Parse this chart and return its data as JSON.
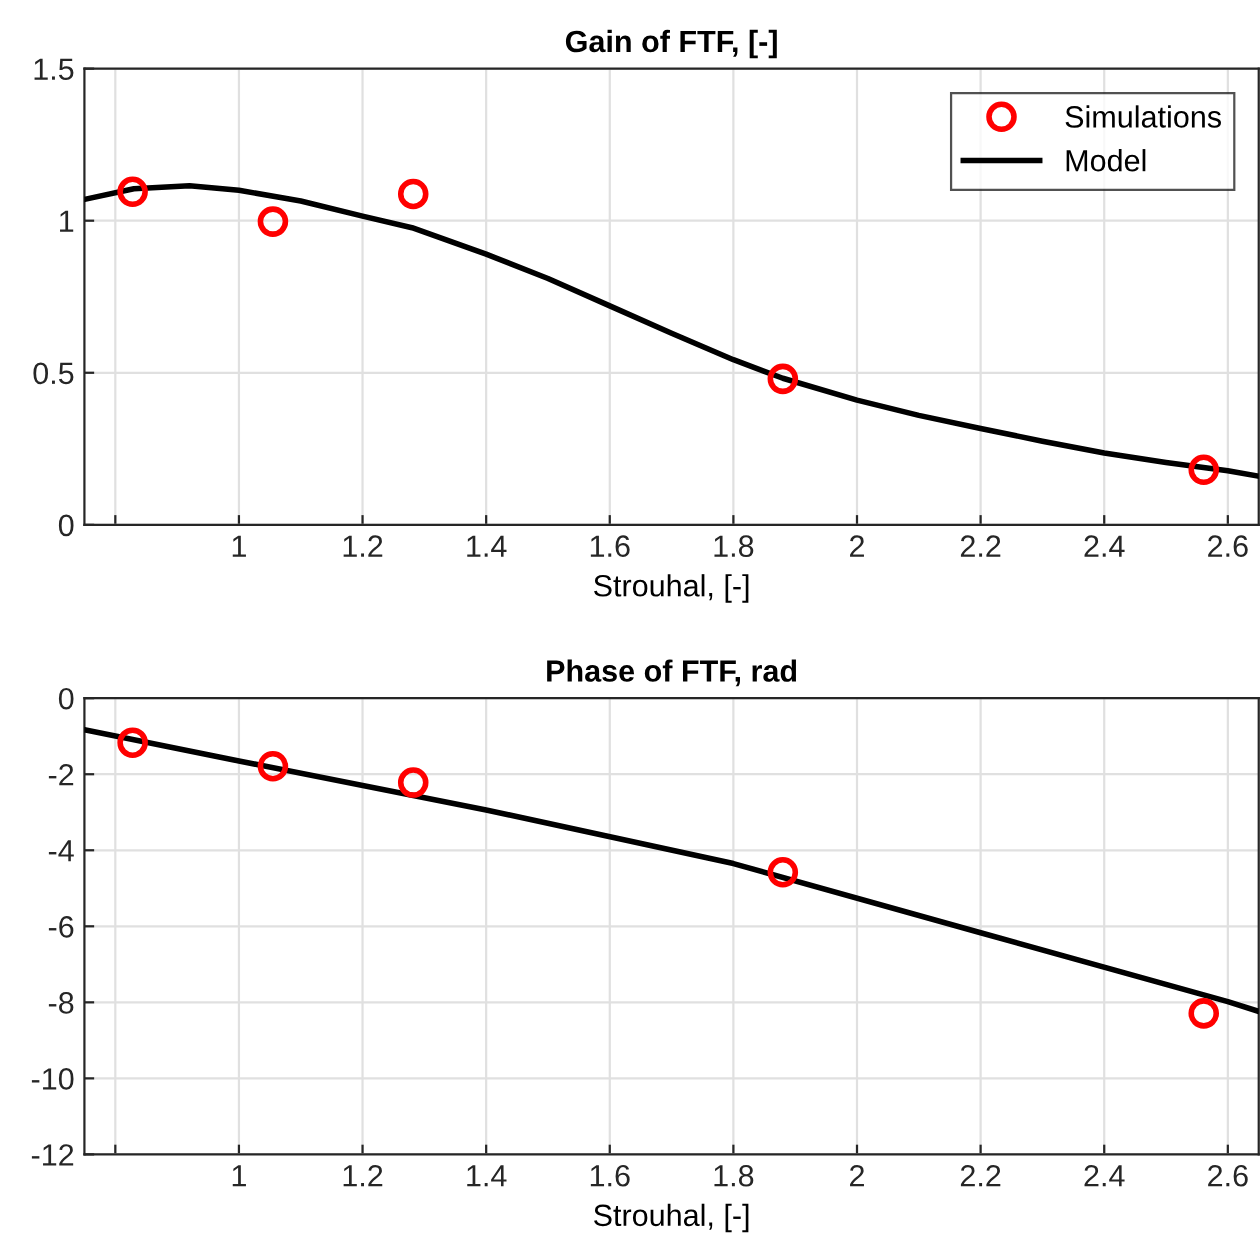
{
  "chart_data": [
    {
      "type": "line",
      "title": "Gain of FTF, [-]",
      "xlabel": "Strouhal, [-]",
      "xlim": [
        0.75,
        2.65
      ],
      "xticks": [
        {
          "value": 0.8,
          "label": null
        },
        1,
        1.2,
        1.4,
        1.6,
        1.8,
        2,
        2.2,
        2.4,
        2.6
      ],
      "ylim": [
        0,
        1.5
      ],
      "yticks": [
        0,
        0.5,
        1,
        1.5
      ],
      "grid": true,
      "legend": "top right",
      "series": [
        {
          "name": "Simulations",
          "type": "scatter",
          "marker": "circle",
          "color": "#ff0000",
          "x": [
            0.828,
            1.055,
            1.282,
            1.88,
            2.561
          ],
          "values": [
            1.095,
            0.997,
            1.088,
            0.48,
            0.181
          ]
        },
        {
          "name": "Model",
          "marker": "none",
          "line_style": "solid",
          "color": "#000000",
          "x": [
            0.75,
            0.83,
            0.92,
            1.0,
            1.1,
            1.2,
            1.28,
            1.4,
            1.5,
            1.6,
            1.7,
            1.8,
            1.88,
            2.0,
            2.1,
            2.2,
            2.3,
            2.4,
            2.5,
            2.6,
            2.65
          ],
          "values": [
            1.07,
            1.105,
            1.115,
            1.1,
            1.065,
            1.015,
            0.977,
            0.89,
            0.81,
            0.72,
            0.63,
            0.543,
            0.482,
            0.41,
            0.36,
            0.317,
            0.275,
            0.236,
            0.205,
            0.178,
            0.16
          ]
        }
      ]
    },
    {
      "type": "line",
      "title": "Phase of FTF, rad",
      "xlabel": "Strouhal, [-]",
      "xlim": [
        0.75,
        2.65
      ],
      "xticks": [
        {
          "value": 0.8,
          "label": null
        },
        1,
        1.2,
        1.4,
        1.6,
        1.8,
        2,
        2.2,
        2.4,
        2.6
      ],
      "ylim": [
        -12,
        0
      ],
      "yticks": [
        -12,
        -10,
        -8,
        -6,
        -4,
        -2,
        0
      ],
      "grid": true,
      "series": [
        {
          "type": "scatter",
          "marker": "circle",
          "color": "#ff0000",
          "x": [
            0.828,
            1.055,
            1.282,
            1.88,
            2.561
          ],
          "values": [
            -1.17,
            -1.79,
            -2.22,
            -4.58,
            -8.29
          ]
        },
        {
          "marker": "none",
          "line_style": "solid",
          "color": "#000000",
          "x": [
            0.75,
            1.0,
            1.4,
            1.8,
            2.2,
            2.6,
            2.65
          ],
          "values": [
            -0.83,
            -1.65,
            -2.94,
            -4.35,
            -6.17,
            -7.98,
            -8.24
          ]
        }
      ]
    }
  ]
}
